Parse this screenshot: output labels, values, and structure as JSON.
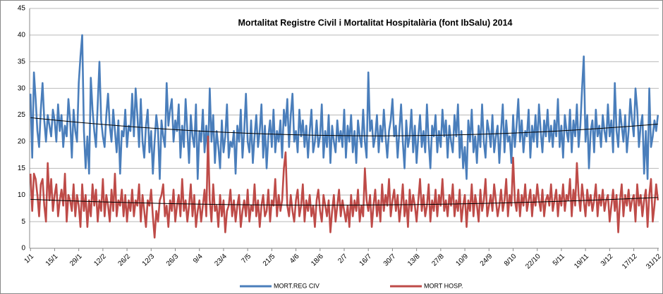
{
  "chart_data": {
    "type": "line",
    "title": "Mortalitat  Registre  Civil  i  Mortalitat  Hospitalària (font IbSalu) 2014",
    "categories": [
      "1/1",
      null,
      null,
      null,
      null,
      null,
      null,
      null,
      null,
      null,
      null,
      null,
      null,
      null,
      "15/1",
      null,
      null,
      null,
      null,
      null,
      null,
      null,
      null,
      null,
      null,
      null,
      null,
      null,
      "29/1",
      null,
      null,
      null,
      null,
      null,
      null,
      null,
      null,
      null,
      null,
      null,
      null,
      null,
      "12/2",
      null,
      null,
      null,
      null,
      null,
      null,
      null,
      null,
      null,
      null,
      null,
      null,
      null,
      "26/2",
      null,
      null,
      null,
      null,
      null,
      null,
      null,
      null,
      null,
      null,
      null,
      null,
      null,
      "12/3",
      null,
      null,
      null,
      null,
      null,
      null,
      null,
      null,
      null,
      null,
      null,
      null,
      null,
      "26/3",
      null,
      null,
      null,
      null,
      null,
      null,
      null,
      null,
      null,
      null,
      null,
      null,
      null,
      "9/4",
      null,
      null,
      null,
      null,
      null,
      null,
      null,
      null,
      null,
      null,
      null,
      null,
      null,
      "23/4",
      null,
      null,
      null,
      null,
      null,
      null,
      null,
      null,
      null,
      null,
      null,
      null,
      null,
      "7/5",
      null,
      null,
      null,
      null,
      null,
      null,
      null,
      null,
      null,
      null,
      null,
      null,
      null,
      "21/5",
      null,
      null,
      null,
      null,
      null,
      null,
      null,
      null,
      null,
      null,
      null,
      null,
      null,
      "4/6",
      null,
      null,
      null,
      null,
      null,
      null,
      null,
      null,
      null,
      null,
      null,
      null,
      null,
      "18/6",
      null,
      null,
      null,
      null,
      null,
      null,
      null,
      null,
      null,
      null,
      null,
      null,
      null,
      "2/7",
      null,
      null,
      null,
      null,
      null,
      null,
      null,
      null,
      null,
      null,
      null,
      null,
      null,
      "16/7",
      null,
      null,
      null,
      null,
      null,
      null,
      null,
      null,
      null,
      null,
      null,
      null,
      null,
      "30/7",
      null,
      null,
      null,
      null,
      null,
      null,
      null,
      null,
      null,
      null,
      null,
      null,
      null,
      "13/8",
      null,
      null,
      null,
      null,
      null,
      null,
      null,
      null,
      null,
      null,
      null,
      null,
      null,
      "27/8",
      null,
      null,
      null,
      null,
      null,
      null,
      null,
      null,
      null,
      null,
      null,
      null,
      null,
      "10/9",
      null,
      null,
      null,
      null,
      null,
      null,
      null,
      null,
      null,
      null,
      null,
      null,
      null,
      "24/9",
      null,
      null,
      null,
      null,
      null,
      null,
      null,
      null,
      null,
      null,
      null,
      null,
      null,
      "8/10",
      null,
      null,
      null,
      null,
      null,
      null,
      null,
      null,
      null,
      null,
      null,
      null,
      null,
      "22/10",
      null,
      null,
      null,
      null,
      null,
      null,
      null,
      null,
      null,
      null,
      null,
      null,
      null,
      "5/11",
      null,
      null,
      null,
      null,
      null,
      null,
      null,
      null,
      null,
      null,
      null,
      null,
      null,
      "19/11",
      null,
      null,
      null,
      null,
      null,
      null,
      null,
      null,
      null,
      null,
      null,
      null,
      null,
      "3/12",
      null,
      null,
      null,
      null,
      null,
      null,
      null,
      null,
      null,
      null,
      null,
      null,
      null,
      "17/12",
      null,
      null,
      null,
      null,
      null,
      null,
      null,
      null,
      null,
      null,
      null,
      null,
      null,
      "31/12"
    ],
    "series": [
      {
        "name": "MORT.REG CIV",
        "color": "#4a7ebb",
        "values": [
          29,
          17,
          33,
          28,
          22,
          19,
          26,
          31,
          24,
          20,
          25,
          23,
          21,
          26,
          24,
          20,
          27,
          22,
          25,
          19,
          23,
          21,
          28,
          24,
          17,
          26,
          22,
          20,
          31,
          36,
          40,
          22,
          15,
          21,
          14,
          32,
          26,
          22,
          19,
          27,
          35,
          24,
          21,
          19,
          25,
          29,
          23,
          20,
          26,
          22,
          18,
          24,
          14,
          22,
          21,
          26,
          19,
          23,
          22,
          29,
          21,
          30,
          25,
          19,
          28,
          20,
          17,
          23,
          26,
          18,
          22,
          14,
          20,
          25,
          22,
          13,
          24,
          21,
          19,
          31,
          23,
          26,
          28,
          20,
          24,
          22,
          27,
          17,
          23,
          19,
          28,
          22,
          16,
          25,
          21,
          19,
          27,
          13,
          22,
          20,
          26,
          18,
          23,
          17,
          30,
          20,
          25,
          16,
          22,
          19,
          15,
          24,
          18,
          21,
          27,
          17,
          20,
          19,
          22,
          14,
          23,
          20,
          26,
          17,
          22,
          29,
          20,
          18,
          24,
          16,
          21,
          25,
          19,
          22,
          27,
          17,
          23,
          15,
          21,
          24,
          19,
          26,
          18,
          22,
          20,
          24,
          17,
          26,
          23,
          28,
          19,
          25,
          29,
          20,
          22,
          18,
          26,
          21,
          24,
          19,
          23,
          17,
          22,
          26,
          18,
          20,
          24,
          19,
          21,
          27,
          17,
          22,
          19,
          25,
          16,
          23,
          20,
          18,
          24,
          20,
          22,
          19,
          26,
          17,
          23,
          20,
          25,
          18,
          22,
          16,
          24,
          21,
          19,
          26,
          20,
          17,
          33,
          22,
          24,
          19,
          21,
          25,
          18,
          23,
          20,
          26,
          21,
          17,
          22,
          24,
          28,
          21,
          23,
          17,
          22,
          27,
          20,
          15,
          24,
          19,
          21,
          26,
          18,
          23,
          16,
          21,
          25,
          19,
          22,
          18,
          27,
          20,
          15,
          23,
          21,
          25,
          18,
          22,
          19,
          26,
          21,
          24,
          17,
          23,
          20,
          18,
          25,
          21,
          27,
          17,
          22,
          15,
          19,
          13,
          24,
          20,
          26,
          18,
          21,
          16,
          23,
          19,
          27,
          20,
          17,
          24,
          22,
          19,
          25,
          18,
          21,
          23,
          16,
          22,
          27,
          18,
          24,
          20,
          21,
          16,
          25,
          19,
          23,
          28,
          20,
          24,
          18,
          22,
          21,
          26,
          17,
          23,
          20,
          25,
          19,
          27,
          22,
          18,
          24,
          21,
          26,
          20,
          23,
          19,
          24,
          21,
          28,
          19,
          23,
          17,
          25,
          22,
          20,
          26,
          18,
          24,
          21,
          27,
          19,
          23,
          30,
          36,
          20,
          25,
          15,
          22,
          24,
          18,
          26,
          21,
          23,
          19,
          25,
          22,
          20,
          27,
          21,
          24,
          18,
          31,
          22,
          19,
          26,
          23,
          20,
          25,
          18,
          22,
          28,
          24,
          21,
          30,
          26,
          19,
          23,
          25,
          14,
          22,
          13,
          30,
          19,
          21,
          24,
          22,
          25
        ]
      },
      {
        "name": "MORT HOSP.",
        "color": "#be4b48",
        "values": [
          14,
          7,
          14,
          13,
          10,
          6,
          12,
          13,
          8,
          5,
          16,
          9,
          13,
          7,
          10,
          12,
          6,
          9,
          11,
          8,
          14,
          5,
          10,
          9,
          7,
          12,
          6,
          10,
          8,
          4,
          12,
          7,
          10,
          4,
          9,
          6,
          12,
          8,
          11,
          5,
          9,
          7,
          13,
          6,
          10,
          8,
          5,
          11,
          7,
          14,
          6,
          9,
          8,
          11,
          6,
          10,
          5,
          9,
          7,
          11,
          6,
          9,
          8,
          12,
          5,
          10,
          7,
          4,
          9,
          8,
          11,
          6,
          2,
          7,
          5,
          9,
          10,
          12,
          6,
          8,
          4,
          9,
          7,
          11,
          5,
          8,
          10,
          6,
          13,
          7,
          9,
          5,
          8,
          12,
          6,
          10,
          4,
          7,
          9,
          5,
          8,
          11,
          6,
          21,
          9,
          5,
          12,
          7,
          8,
          4,
          10,
          6,
          9,
          3,
          7,
          8,
          11,
          6,
          9,
          5,
          8,
          10,
          4,
          7,
          9,
          6,
          11,
          5,
          8,
          7,
          12,
          6,
          9,
          4,
          8,
          10,
          6,
          7,
          11,
          5,
          9,
          8,
          13,
          6,
          10,
          7,
          9,
          15,
          18,
          8,
          6,
          10,
          7,
          5,
          9,
          11,
          6,
          8,
          12,
          5,
          9,
          7,
          10,
          6,
          8,
          4,
          9,
          11,
          7,
          5,
          10,
          8,
          6,
          9,
          3,
          7,
          10,
          5,
          8,
          11,
          6,
          9,
          7,
          5,
          8,
          4,
          10,
          6,
          9,
          7,
          11,
          5,
          8,
          6,
          15,
          9,
          7,
          10,
          4,
          8,
          11,
          6,
          9,
          5,
          12,
          7,
          10,
          8,
          13,
          6,
          9,
          11,
          7,
          10,
          5,
          8,
          12,
          6,
          9,
          4,
          11,
          7,
          10,
          8,
          5,
          9,
          13,
          7,
          10,
          6,
          8,
          12,
          5,
          9,
          7,
          11,
          6,
          10,
          8,
          13,
          7,
          9,
          6,
          10,
          8,
          12,
          6,
          9,
          7,
          11,
          5,
          8,
          10,
          4,
          9,
          7,
          12,
          6,
          10,
          8,
          5,
          11,
          7,
          9,
          13,
          6,
          8,
          10,
          7,
          12,
          9,
          6,
          8,
          11,
          7,
          9,
          13,
          6,
          10,
          8,
          17,
          9,
          7,
          11,
          6,
          10,
          8,
          12,
          7,
          9,
          11,
          6,
          10,
          8,
          12,
          9,
          7,
          11,
          6,
          9,
          10,
          8,
          12,
          7,
          9,
          11,
          6,
          10,
          8,
          12,
          7,
          10,
          9,
          13,
          6,
          11,
          8,
          16,
          10,
          7,
          12,
          9,
          6,
          11,
          8,
          10,
          7,
          9,
          12,
          6,
          10,
          8,
          11,
          7,
          9,
          10,
          5,
          8,
          11,
          7,
          10,
          3,
          9,
          12,
          6,
          10,
          8,
          11,
          7,
          9,
          10,
          5,
          12,
          8,
          10,
          6,
          9,
          11,
          4,
          10,
          13,
          5,
          8,
          12,
          9
        ]
      }
    ],
    "ylim": [
      0,
      45
    ],
    "yticks": [
      0,
      5,
      10,
      15,
      20,
      25,
      30,
      35,
      40,
      45
    ],
    "grid": true,
    "trendline": true,
    "legend": "bottom"
  }
}
